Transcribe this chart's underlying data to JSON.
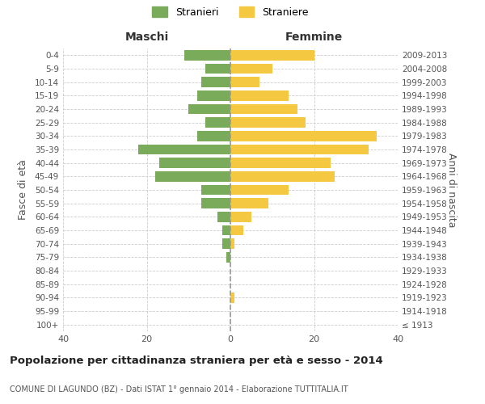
{
  "age_groups": [
    "100+",
    "95-99",
    "90-94",
    "85-89",
    "80-84",
    "75-79",
    "70-74",
    "65-69",
    "60-64",
    "55-59",
    "50-54",
    "45-49",
    "40-44",
    "35-39",
    "30-34",
    "25-29",
    "20-24",
    "15-19",
    "10-14",
    "5-9",
    "0-4"
  ],
  "birth_years": [
    "≤ 1913",
    "1914-1918",
    "1919-1923",
    "1924-1928",
    "1929-1933",
    "1934-1938",
    "1939-1943",
    "1944-1948",
    "1949-1953",
    "1954-1958",
    "1959-1963",
    "1964-1968",
    "1969-1973",
    "1974-1978",
    "1979-1983",
    "1984-1988",
    "1989-1993",
    "1994-1998",
    "1999-2003",
    "2004-2008",
    "2009-2013"
  ],
  "maschi": [
    0,
    0,
    0,
    0,
    0,
    1,
    2,
    2,
    3,
    7,
    7,
    18,
    17,
    22,
    8,
    6,
    10,
    8,
    7,
    6,
    11
  ],
  "femmine": [
    0,
    0,
    1,
    0,
    0,
    0,
    1,
    3,
    5,
    9,
    14,
    25,
    24,
    33,
    35,
    18,
    16,
    14,
    7,
    10,
    20
  ],
  "maschi_color": "#7aab5a",
  "femmine_color": "#f5c842",
  "grid_color": "#cccccc",
  "title": "Popolazione per cittadinanza straniera per età e sesso - 2014",
  "subtitle": "COMUNE DI LAGUNDO (BZ) - Dati ISTAT 1° gennaio 2014 - Elaborazione TUTTITALIA.IT",
  "ylabel_left": "Fasce di età",
  "ylabel_right": "Anni di nascita",
  "xlabel_left": "Maschi",
  "xlabel_right": "Femmine",
  "legend_stranieri": "Stranieri",
  "legend_straniere": "Straniere",
  "xlim": 40
}
